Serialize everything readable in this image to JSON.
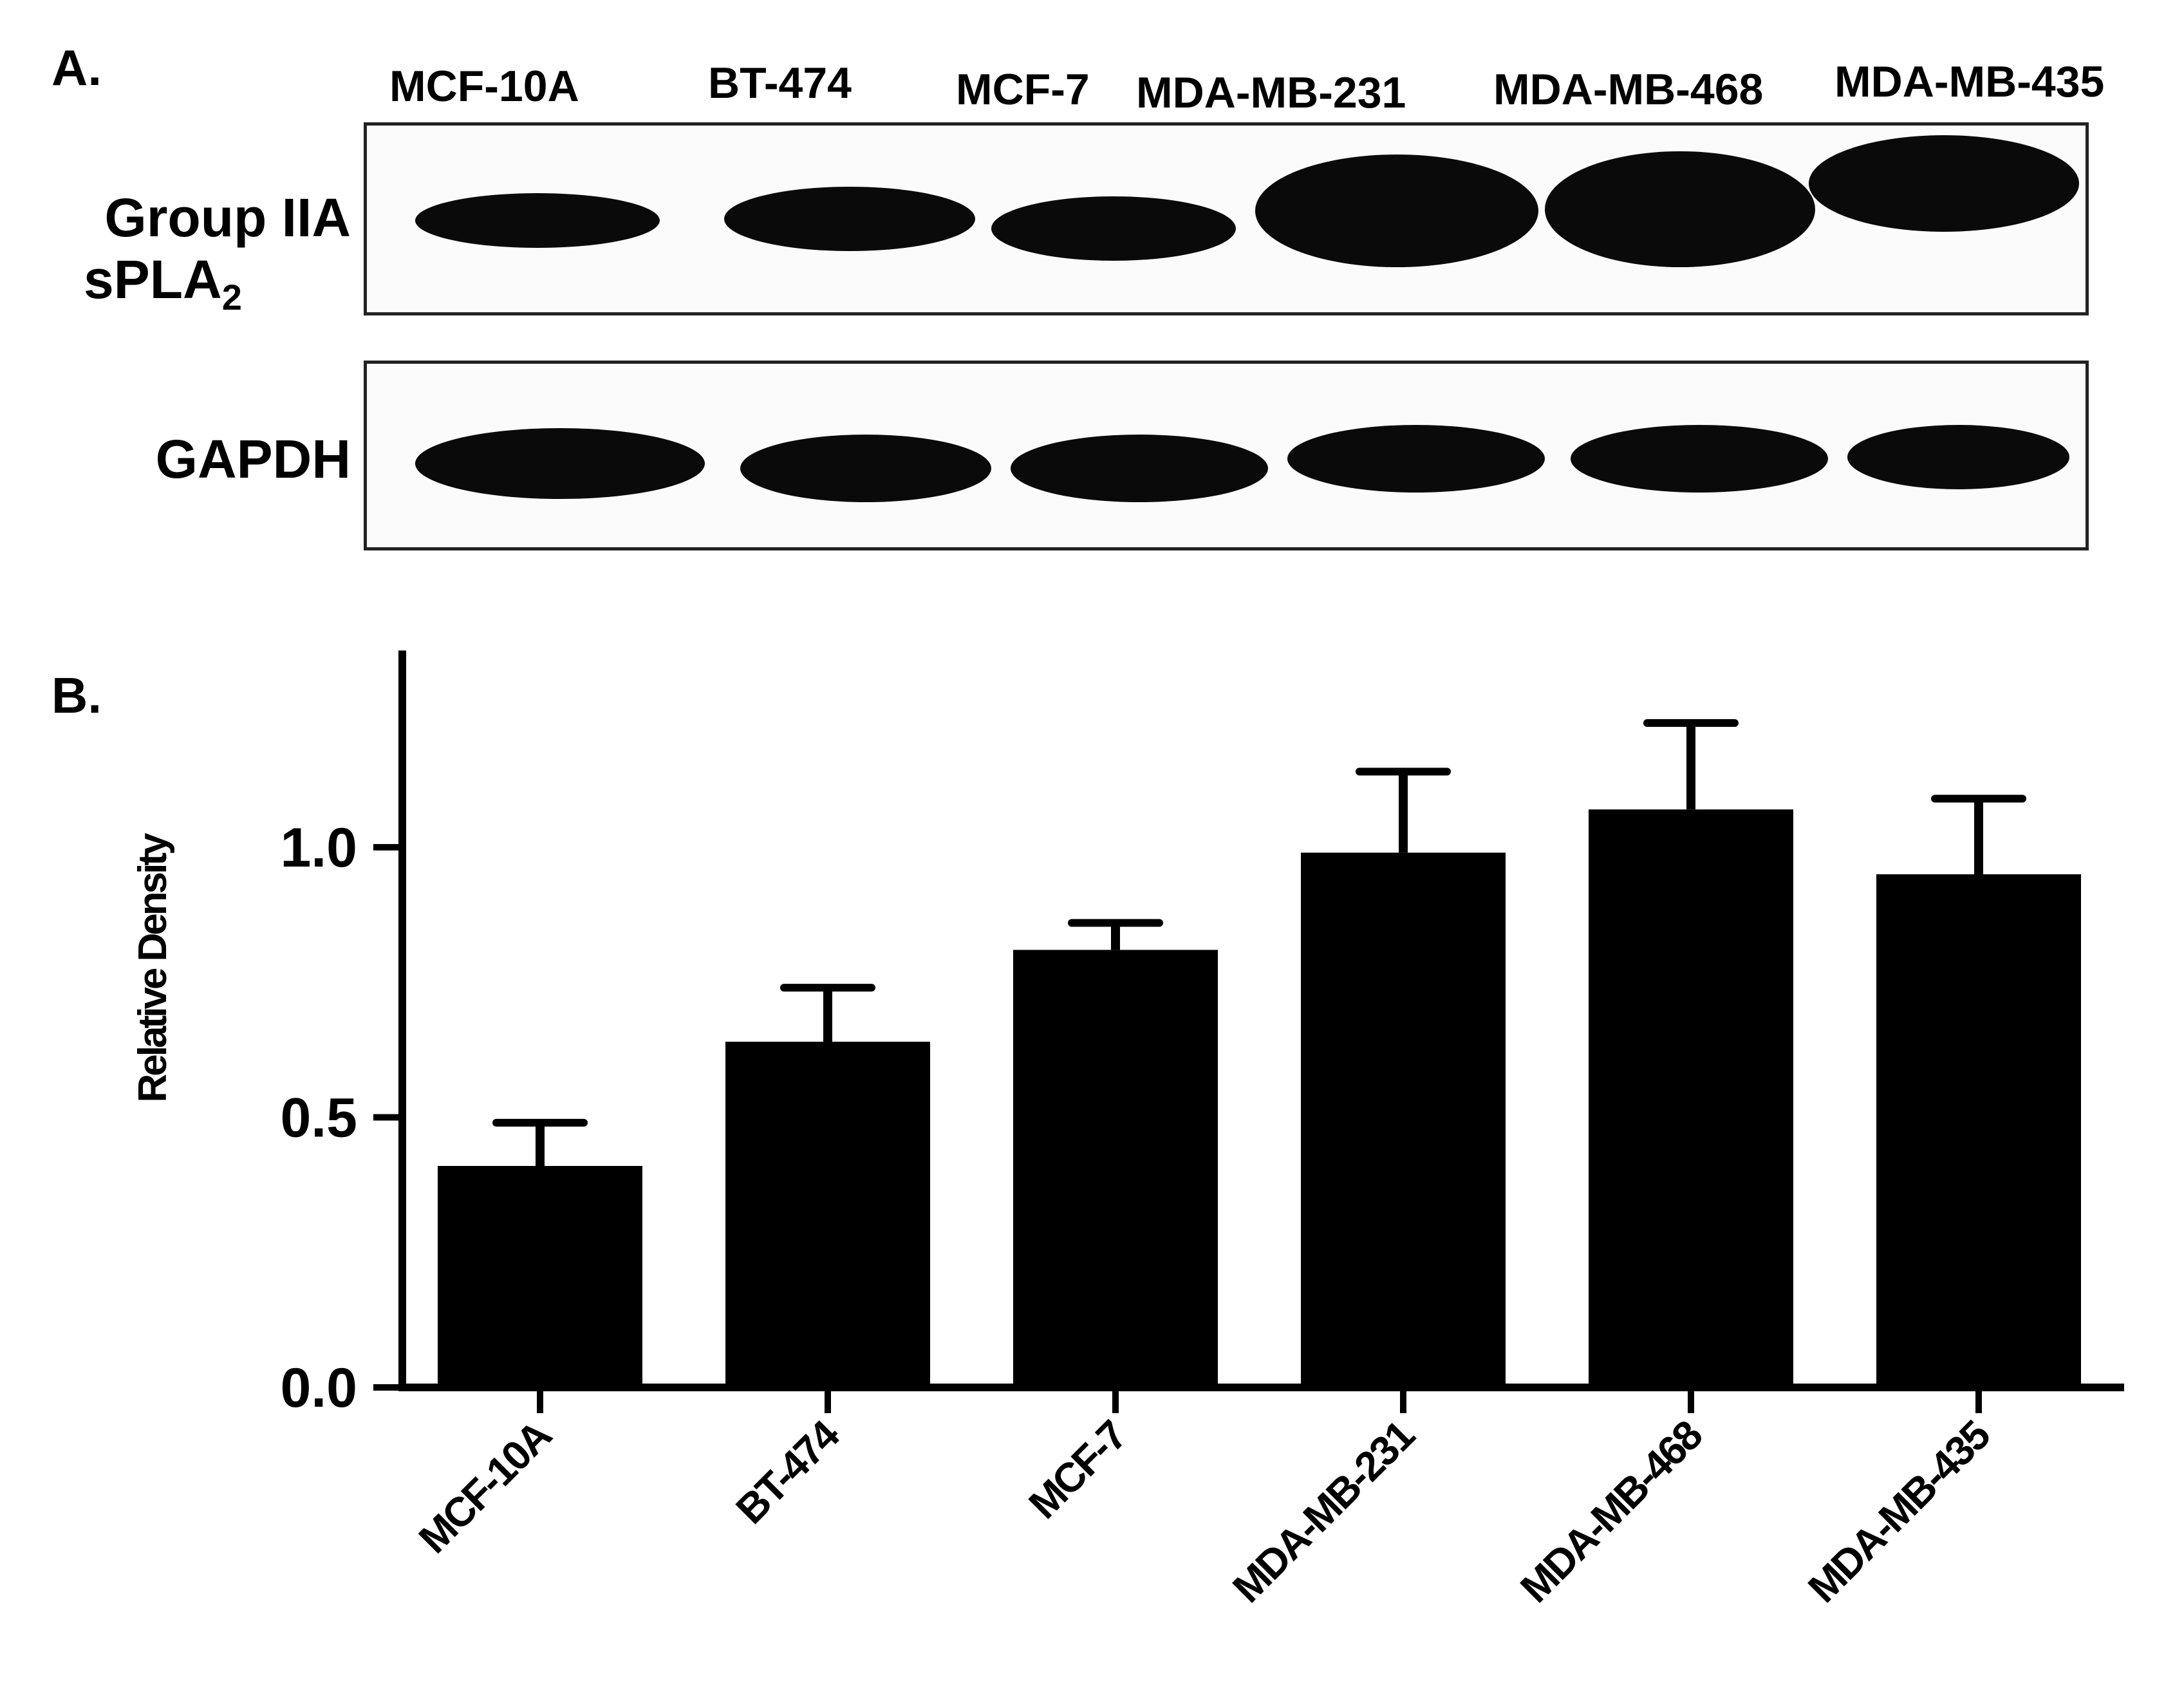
{
  "panel_a": {
    "letter": "A.",
    "lanes": [
      "MCF-10A",
      "BT-474",
      "MCF-7",
      "MDA-MB-231",
      "MDA-MB-468",
      "MDA-MB-435"
    ],
    "row1_label_line1": "Group IIA",
    "row1_label_line2": "sPLA",
    "row1_label_sub": "2",
    "row2_label": "GAPDH",
    "band_intensity_row1": [
      0.35,
      0.85,
      0.9,
      1.0,
      1.0,
      0.95
    ],
    "band_intensity_row2": [
      1.0,
      0.95,
      0.95,
      0.92,
      0.92,
      0.9
    ]
  },
  "panel_b": {
    "letter": "B."
  },
  "chart_data": {
    "type": "bar",
    "categories": [
      "MCF-10A",
      "BT-474",
      "MCF-7",
      "MDA-MB-231",
      "MDA-MB-468",
      "MDA-MB-435"
    ],
    "values": [
      0.41,
      0.64,
      0.81,
      0.99,
      1.07,
      0.95
    ],
    "error_upper": [
      0.49,
      0.74,
      0.86,
      1.14,
      1.23,
      1.09
    ],
    "ylabel": "Relative Density",
    "xlabel": "",
    "title": "",
    "ylim": [
      0,
      1.4
    ],
    "yticks": [
      0.0,
      0.5,
      1.0
    ],
    "ytick_labels": [
      "0.0",
      "0.5",
      "1.0"
    ],
    "grid": false,
    "bar_color": "#000000"
  }
}
